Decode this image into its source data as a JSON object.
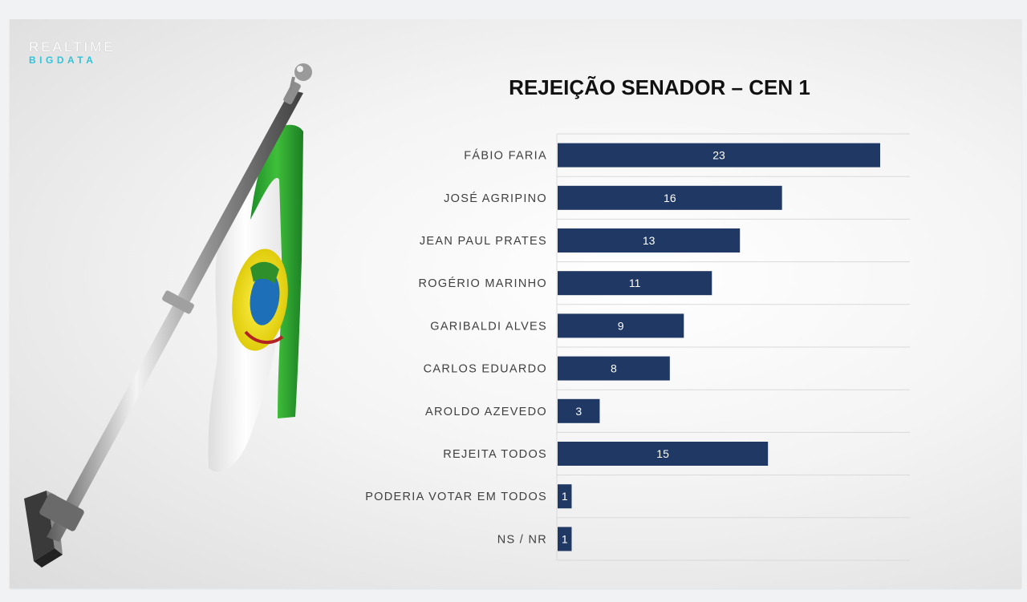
{
  "logo": {
    "line1": "REALTIME",
    "line2": "BIGDATA"
  },
  "colors": {
    "bar": "#1f3864",
    "bar_label": "#ffffff",
    "category_label": "#404040",
    "grid": "#d9d9d9",
    "logo_accent": "#33c3d9"
  },
  "chart_data": {
    "type": "bar",
    "orientation": "horizontal",
    "title": "REJEIÇÃO SENADOR – CEN 1",
    "categories": [
      "FÁBIO FARIA",
      "JOSÉ AGRIPINO",
      "JEAN PAUL PRATES",
      "ROGÉRIO MARINHO",
      "GARIBALDI ALVES",
      "CARLOS EDUARDO",
      "AROLDO AZEVEDO",
      "REJEITA TODOS",
      "PODERIA VOTAR EM TODOS",
      "NS / NR"
    ],
    "values": [
      23,
      16,
      13,
      11,
      9,
      8,
      3,
      15,
      1,
      1
    ],
    "data_labels": [
      "23",
      "16",
      "13",
      "11",
      "9",
      "8",
      "3",
      "15",
      "1",
      "1"
    ],
    "xlim": [
      0,
      25
    ],
    "xlabel": "",
    "ylabel": "",
    "grid": "horizontal",
    "legend": "none"
  }
}
